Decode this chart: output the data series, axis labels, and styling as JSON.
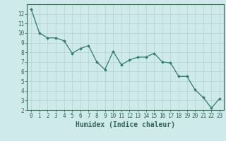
{
  "x": [
    0,
    1,
    2,
    3,
    4,
    5,
    6,
    7,
    8,
    9,
    10,
    11,
    12,
    13,
    14,
    15,
    16,
    17,
    18,
    19,
    20,
    21,
    22,
    23
  ],
  "y": [
    12.5,
    10.0,
    9.5,
    9.5,
    9.2,
    7.9,
    8.4,
    8.7,
    7.0,
    6.2,
    8.1,
    6.7,
    7.2,
    7.5,
    7.5,
    7.9,
    7.0,
    6.9,
    5.5,
    5.5,
    4.1,
    3.3,
    2.2,
    3.2
  ],
  "line_color": "#2e7d6e",
  "marker": "D",
  "markersize": 2.0,
  "linewidth": 0.9,
  "bg_color": "#ceeaea",
  "grid_color": "#b8d0d0",
  "xlabel": "Humidex (Indice chaleur)",
  "xlim": [
    -0.5,
    23.5
  ],
  "ylim": [
    2,
    13
  ],
  "yticks": [
    2,
    3,
    4,
    5,
    6,
    7,
    8,
    9,
    10,
    11,
    12
  ],
  "xticks": [
    0,
    1,
    2,
    3,
    4,
    5,
    6,
    7,
    8,
    9,
    10,
    11,
    12,
    13,
    14,
    15,
    16,
    17,
    18,
    19,
    20,
    21,
    22,
    23
  ],
  "xlabel_fontsize": 7,
  "tick_fontsize": 5.5,
  "spine_color": "#336655"
}
